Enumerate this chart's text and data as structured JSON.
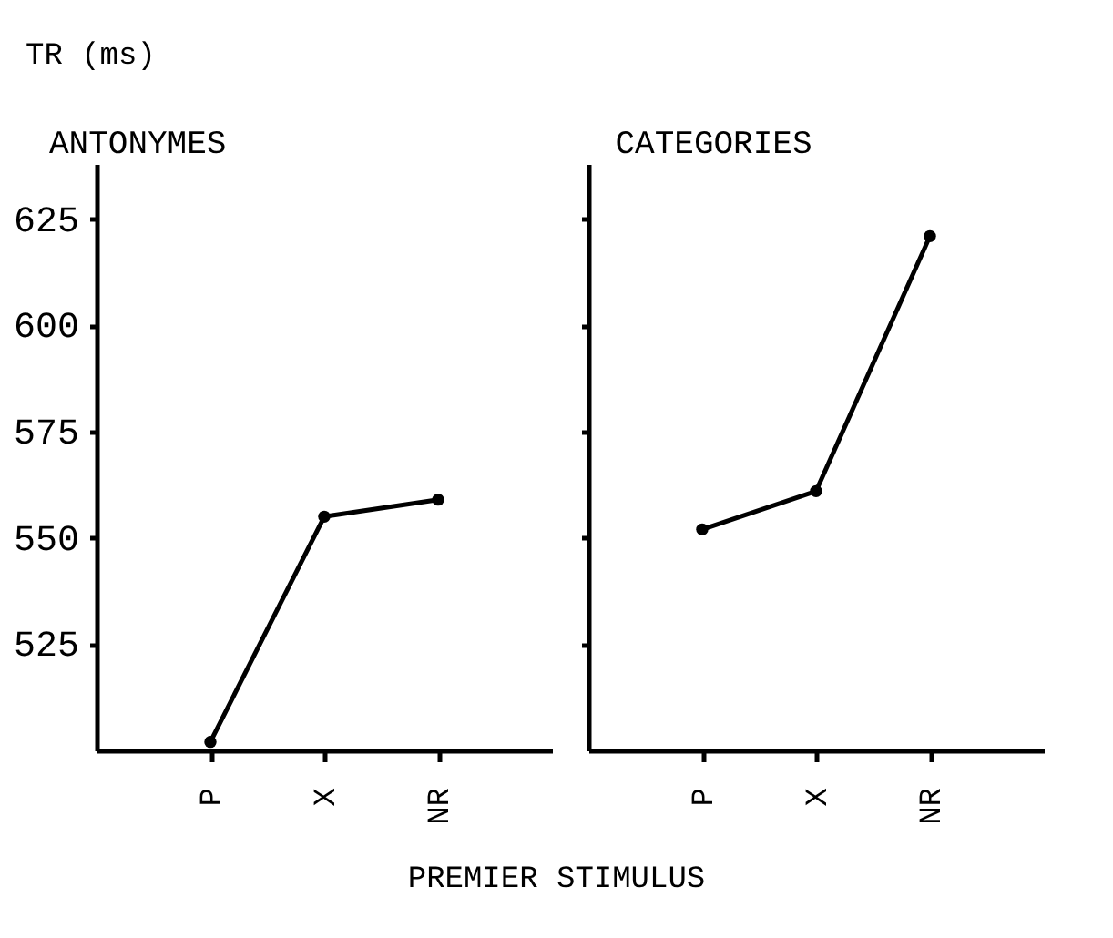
{
  "chart_data": [
    {
      "type": "line",
      "title": "ANTONYMES",
      "ylabel": "TR (ms)",
      "xlabel": "PREMIER STIMULUS",
      "categories": [
        "P",
        "X",
        "NR"
      ],
      "series": [
        {
          "color": "#000000",
          "values": [
            502,
            555,
            559
          ]
        }
      ],
      "ylim": [
        500,
        638
      ],
      "yticks": [
        525,
        550,
        575,
        600,
        625
      ],
      "marker": "circle",
      "grid": false,
      "legend": false
    },
    {
      "type": "line",
      "title": "CATEGORIES",
      "categories": [
        "P",
        "X",
        "NR"
      ],
      "series": [
        {
          "color": "#000000",
          "values": [
            552,
            561,
            621
          ]
        }
      ],
      "ylim": [
        500,
        638
      ],
      "yticks": [
        525,
        550,
        575,
        600,
        625
      ],
      "tick_labels": "x",
      "marker": "circle",
      "grid": false,
      "legend": false
    }
  ]
}
